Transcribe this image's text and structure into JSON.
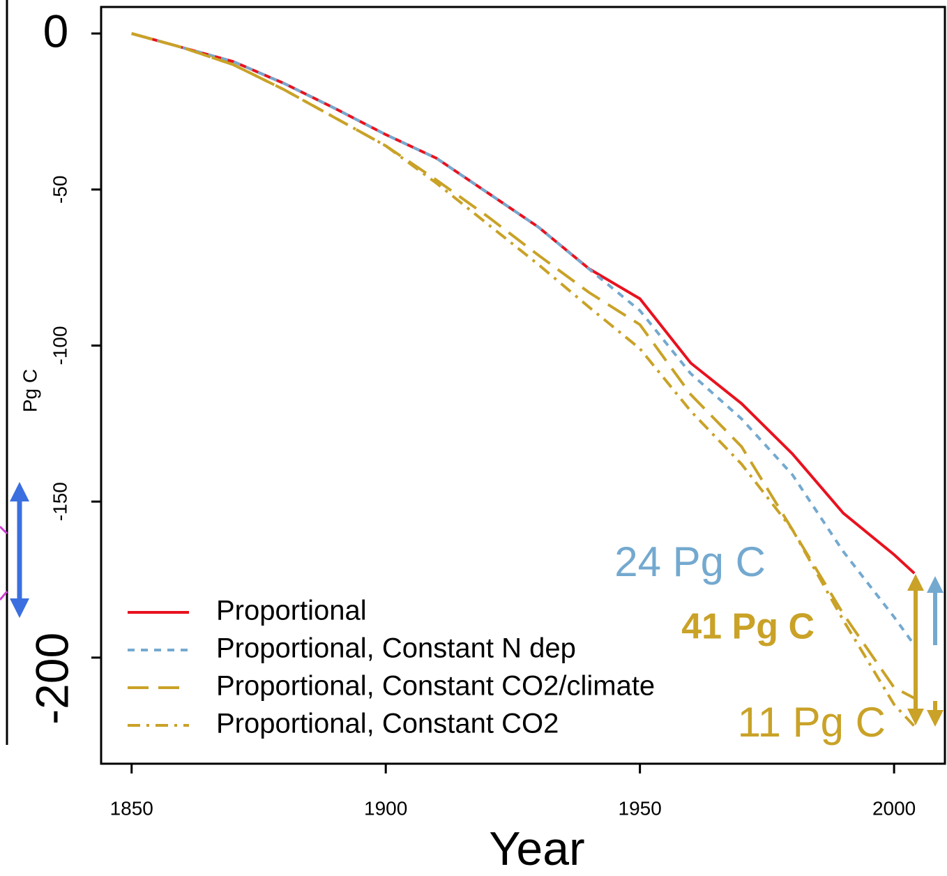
{
  "chart_data": {
    "type": "line",
    "x_label": "Year",
    "y_label": "Pg C",
    "x": [
      1850,
      1860,
      1870,
      1880,
      1890,
      1900,
      1910,
      1920,
      1930,
      1940,
      1950,
      1960,
      1970,
      1980,
      1990,
      2000,
      2004
    ],
    "xlim": [
      1844,
      2010
    ],
    "xticks": [
      1850,
      1900,
      1950,
      2000
    ],
    "ylim": [
      -234,
      8.5
    ],
    "yticks": [
      0,
      -50,
      -100,
      -150,
      -200
    ],
    "series": [
      {
        "name": "Proportional",
        "color": "#e8121f",
        "dash": "solid",
        "values": [
          0,
          -4.5,
          -9,
          -16,
          -24,
          -32.4,
          -40,
          -51,
          -62,
          -75.4,
          -85,
          -105.6,
          -118.6,
          -134.7,
          -153.7,
          -167,
          -173
        ]
      },
      {
        "name": "Proportional, Constant N dep",
        "color": "#74a9cf",
        "dash": "dotted",
        "values": [
          0,
          -4.5,
          -9,
          -16,
          -24,
          -32.4,
          -40,
          -51,
          -62,
          -75.5,
          -88.8,
          -109,
          -123.5,
          -141.4,
          -166,
          -187,
          -196
        ]
      },
      {
        "name": "Proportional, Constant CO2/climate",
        "color": "#c9a227",
        "dash": "dashed",
        "values": [
          0,
          -4.5,
          -10,
          -18,
          -27,
          -36,
          -47,
          -58.6,
          -71,
          -83,
          -93.3,
          -115.7,
          -132.4,
          -159,
          -186,
          -209.6,
          -213
        ]
      },
      {
        "name": "Proportional, Constant CO2",
        "color": "#c9a227",
        "dash": "dashdot",
        "values": [
          0,
          -4.5,
          -10,
          -18,
          -27,
          -36,
          -48,
          -61,
          -74,
          -87.7,
          -101,
          -121,
          -138,
          -159,
          -188,
          -215,
          -222
        ]
      }
    ],
    "annotations": [
      {
        "text": "24 Pg C",
        "color": "#74a9cf",
        "bold": false
      },
      {
        "text": "41 Pg C",
        "color": "#c9a227",
        "bold": true
      },
      {
        "text": "11 Pg C",
        "color": "#c9a227",
        "bold": false
      }
    ],
    "legend": "bottom-left"
  }
}
